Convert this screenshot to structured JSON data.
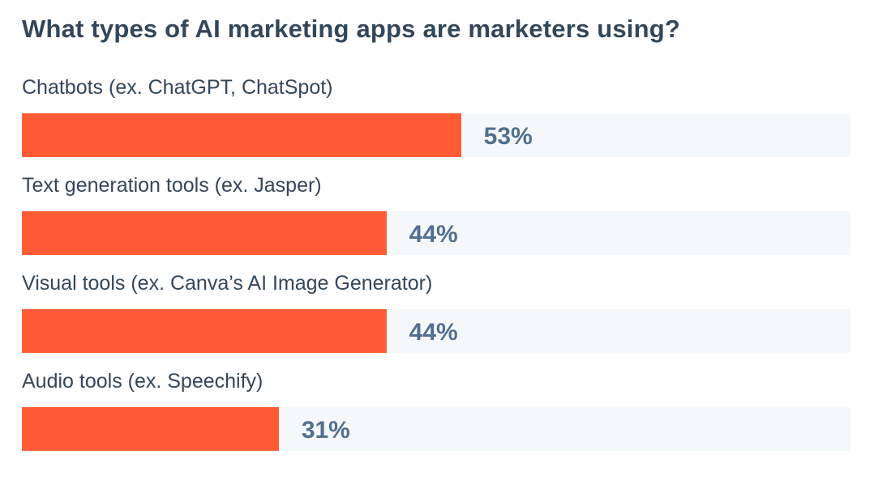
{
  "chart_data": {
    "type": "bar",
    "orientation": "horizontal",
    "title": "What types of AI marketing apps are marketers using?",
    "categories": [
      "Chatbots (ex. ChatGPT, ChatSpot)",
      "Text generation tools (ex. Jasper)",
      "Visual tools (ex. Canva’s AI Image Generator)",
      "Audio tools (ex. Speechify)"
    ],
    "values": [
      53,
      44,
      44,
      31
    ],
    "value_labels": [
      "53%",
      "44%",
      "44%",
      "31%"
    ],
    "xlim": [
      0,
      100
    ],
    "xlabel": "",
    "ylabel": "",
    "grid": false,
    "colors": {
      "bar": "#ff5c35",
      "track": "#f5f8fa",
      "value_text": "#516f90",
      "title": "#33475b"
    }
  }
}
